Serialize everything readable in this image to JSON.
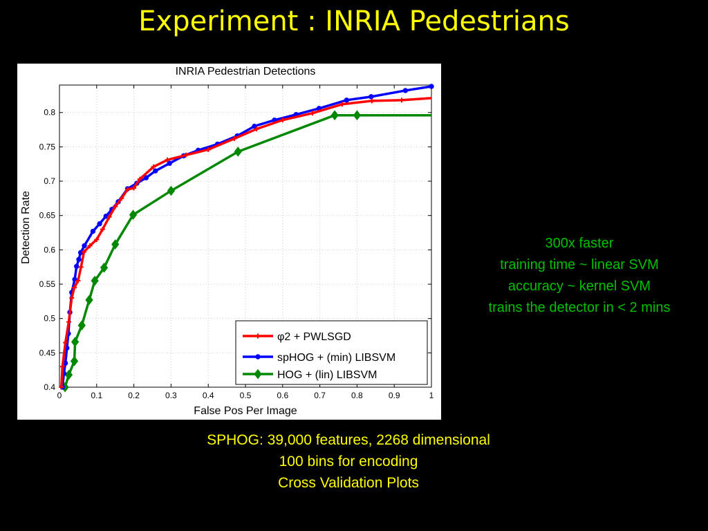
{
  "slide": {
    "title": "Experiment : INRIA  Pedestrians",
    "side_notes": [
      "300x faster",
      "training time ~ linear SVM",
      "accuracy ~ kernel SVM",
      "trains the detector in < 2 mins"
    ],
    "bottom_notes": [
      "SPHOG: 39,000 features, 2268 dimensional",
      "100 bins for encoding",
      "Cross Validation Plots"
    ],
    "colors": {
      "background": "#000000",
      "title": "#ffff00",
      "side_notes": "#00c000",
      "bottom_notes": "#ffff00"
    }
  },
  "chart_data": {
    "type": "line",
    "title": "INRIA Pedestrian Detections",
    "xlabel": "False Pos Per Image",
    "ylabel": "Detection Rate",
    "xlim": [
      0,
      1
    ],
    "ylim": [
      0.4,
      0.84
    ],
    "xticks": [
      "0",
      "0.1",
      "0.2",
      "0.3",
      "0.4",
      "0.5",
      "0.6",
      "0.7",
      "0.8",
      "0.9",
      "1"
    ],
    "yticks": [
      "0.4",
      "0.45",
      "0.5",
      "0.55",
      "0.6",
      "0.65",
      "0.7",
      "0.75",
      "0.8"
    ],
    "grid": true,
    "legend_position": "bottom-right",
    "series": [
      {
        "name": "φ2 + PWLSGD",
        "color": "#ff0000",
        "marker": "plus",
        "points": [
          [
            0.005,
            0.4
          ],
          [
            0.008,
            0.43
          ],
          [
            0.016,
            0.465
          ],
          [
            0.025,
            0.495
          ],
          [
            0.033,
            0.53
          ],
          [
            0.04,
            0.545
          ],
          [
            0.05,
            0.555
          ],
          [
            0.058,
            0.575
          ],
          [
            0.066,
            0.597
          ],
          [
            0.082,
            0.606
          ],
          [
            0.1,
            0.615
          ],
          [
            0.116,
            0.63
          ],
          [
            0.134,
            0.648
          ],
          [
            0.15,
            0.663
          ],
          [
            0.167,
            0.675
          ],
          [
            0.183,
            0.688
          ],
          [
            0.2,
            0.69
          ],
          [
            0.216,
            0.703
          ],
          [
            0.253,
            0.721
          ],
          [
            0.29,
            0.731
          ],
          [
            0.34,
            0.738
          ],
          [
            0.4,
            0.746
          ],
          [
            0.47,
            0.762
          ],
          [
            0.53,
            0.776
          ],
          [
            0.6,
            0.789
          ],
          [
            0.68,
            0.799
          ],
          [
            0.76,
            0.812
          ],
          [
            0.84,
            0.817
          ],
          [
            0.92,
            0.818
          ],
          [
            1.0,
            0.821
          ]
        ]
      },
      {
        "name": "spHOG + (min) LIBSVM",
        "color": "#0000ff",
        "marker": "circle",
        "points": [
          [
            0.008,
            0.4
          ],
          [
            0.012,
            0.42
          ],
          [
            0.016,
            0.435
          ],
          [
            0.02,
            0.457
          ],
          [
            0.024,
            0.478
          ],
          [
            0.028,
            0.509
          ],
          [
            0.033,
            0.538
          ],
          [
            0.041,
            0.557
          ],
          [
            0.046,
            0.576
          ],
          [
            0.052,
            0.586
          ],
          [
            0.057,
            0.596
          ],
          [
            0.067,
            0.606
          ],
          [
            0.09,
            0.627
          ],
          [
            0.108,
            0.638
          ],
          [
            0.125,
            0.649
          ],
          [
            0.141,
            0.659
          ],
          [
            0.158,
            0.67
          ],
          [
            0.183,
            0.689
          ],
          [
            0.208,
            0.697
          ],
          [
            0.233,
            0.705
          ],
          [
            0.258,
            0.715
          ],
          [
            0.296,
            0.726
          ],
          [
            0.334,
            0.737
          ],
          [
            0.373,
            0.745
          ],
          [
            0.425,
            0.754
          ],
          [
            0.478,
            0.766
          ],
          [
            0.524,
            0.78
          ],
          [
            0.578,
            0.789
          ],
          [
            0.636,
            0.797
          ],
          [
            0.698,
            0.806
          ],
          [
            0.772,
            0.818
          ],
          [
            0.838,
            0.823
          ],
          [
            0.93,
            0.832
          ],
          [
            1.0,
            0.838
          ]
        ]
      },
      {
        "name": "HOG + (lin) LIBSVM",
        "color": "#008800",
        "marker": "diamond",
        "points": [
          [
            0.015,
            0.4
          ],
          [
            0.025,
            0.418
          ],
          [
            0.04,
            0.438
          ],
          [
            0.042,
            0.466
          ],
          [
            0.06,
            0.49
          ],
          [
            0.08,
            0.527
          ],
          [
            0.095,
            0.555
          ],
          [
            0.12,
            0.574
          ],
          [
            0.15,
            0.608
          ],
          [
            0.198,
            0.651
          ],
          [
            0.3,
            0.686
          ],
          [
            0.48,
            0.743
          ],
          [
            0.74,
            0.796
          ],
          [
            0.8,
            0.796
          ],
          [
            1.0,
            0.796
          ]
        ]
      }
    ]
  }
}
